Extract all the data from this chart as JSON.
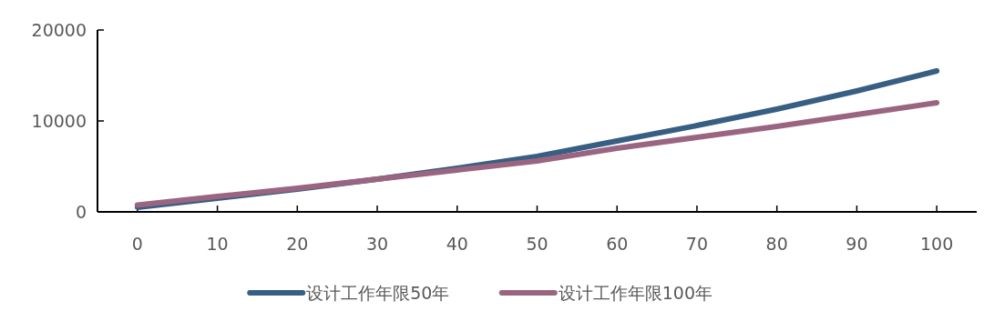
{
  "chart_data": {
    "type": "line",
    "x": [
      0,
      10,
      20,
      30,
      40,
      50,
      60,
      70,
      80,
      90,
      100
    ],
    "series": [
      {
        "name": "设计工作年限50年",
        "color": "#375e83",
        "values": [
          500,
          1500,
          2500,
          3600,
          4800,
          6100,
          7800,
          9500,
          11300,
          13300,
          15500
        ]
      },
      {
        "name": "设计工作年限100年",
        "color": "#9a6580",
        "values": [
          750,
          1700,
          2600,
          3600,
          4600,
          5600,
          7000,
          8200,
          9400,
          10700,
          12000
        ]
      }
    ],
    "xlim": [
      -5,
      105
    ],
    "xticks": [
      0,
      10,
      20,
      30,
      40,
      50,
      60,
      70,
      80,
      90,
      100
    ],
    "ylim": [
      0,
      20000
    ],
    "yticks": [
      0,
      10000,
      20000
    ],
    "legend": "bottom",
    "marker": "none",
    "line_style": "solid"
  }
}
